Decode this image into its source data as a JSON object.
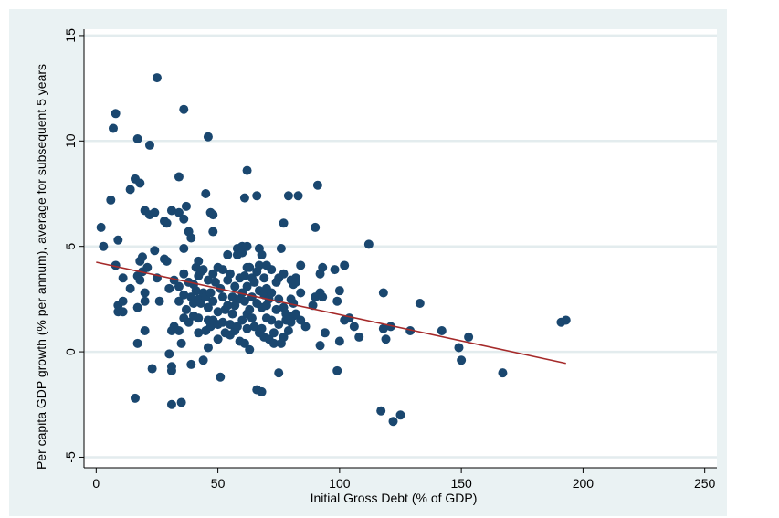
{
  "chart_data": {
    "type": "scatter",
    "title": "",
    "xlabel": "Initial Gross Debt (% of GDP)",
    "ylabel": "Per capita GDP growth (% per annum), average for subsequent 5 years",
    "xlim": [
      -5,
      255
    ],
    "ylim": [
      -5.5,
      15.3
    ],
    "x_ticks": [
      0,
      50,
      100,
      150,
      200,
      250
    ],
    "y_ticks": [
      -5,
      0,
      5,
      10,
      15
    ],
    "grid": "horizontal",
    "colors": {
      "points": "#1a476f",
      "fit_line": "#a52a2a",
      "grid": "#ffffff",
      "frame": "#eaf2f3",
      "plot_bg": "#ffffff"
    },
    "series": [
      {
        "type": "scatter",
        "points": [
          [
            2,
            5.9
          ],
          [
            3,
            5.0
          ],
          [
            6,
            7.2
          ],
          [
            7,
            10.6
          ],
          [
            8,
            11.3
          ],
          [
            8,
            4.1
          ],
          [
            9,
            5.3
          ],
          [
            9,
            2.2
          ],
          [
            9,
            1.9
          ],
          [
            11,
            1.9
          ],
          [
            11,
            2.4
          ],
          [
            11,
            3.5
          ],
          [
            14,
            7.7
          ],
          [
            14,
            3.0
          ],
          [
            16,
            8.2
          ],
          [
            16,
            -2.2
          ],
          [
            17,
            10.1
          ],
          [
            17,
            3.6
          ],
          [
            17,
            2.1
          ],
          [
            17,
            0.4
          ],
          [
            18,
            8.0
          ],
          [
            18,
            4.3
          ],
          [
            18,
            3.4
          ],
          [
            19,
            4.5
          ],
          [
            19,
            3.8
          ],
          [
            20,
            6.7
          ],
          [
            20,
            2.8
          ],
          [
            20,
            2.4
          ],
          [
            20,
            1.0
          ],
          [
            21,
            4.0
          ],
          [
            22,
            9.8
          ],
          [
            22,
            6.5
          ],
          [
            23,
            -0.8
          ],
          [
            24,
            6.6
          ],
          [
            24,
            4.8
          ],
          [
            25,
            13.0
          ],
          [
            25,
            3.5
          ],
          [
            26,
            2.4
          ],
          [
            28,
            6.2
          ],
          [
            28,
            4.4
          ],
          [
            29,
            6.1
          ],
          [
            29,
            4.3
          ],
          [
            30,
            3.0
          ],
          [
            30,
            -0.1
          ],
          [
            31,
            6.7
          ],
          [
            31,
            -2.5
          ],
          [
            31,
            1.0
          ],
          [
            31,
            -0.7
          ],
          [
            31,
            -0.9
          ],
          [
            32,
            3.4
          ],
          [
            32,
            1.2
          ],
          [
            34,
            8.3
          ],
          [
            34,
            6.6
          ],
          [
            34,
            3.1
          ],
          [
            34,
            2.4
          ],
          [
            34,
            1.0
          ],
          [
            35,
            0.4
          ],
          [
            35,
            -2.4
          ],
          [
            36,
            11.5
          ],
          [
            36,
            6.3
          ],
          [
            36,
            4.9
          ],
          [
            36,
            3.7
          ],
          [
            36,
            2.7
          ],
          [
            36,
            1.6
          ],
          [
            37,
            6.9
          ],
          [
            37,
            2.0
          ],
          [
            38,
            5.7
          ],
          [
            38,
            3.3
          ],
          [
            38,
            1.4
          ],
          [
            39,
            5.4
          ],
          [
            39,
            2.6
          ],
          [
            39,
            -0.6
          ],
          [
            40,
            3.2
          ],
          [
            40,
            2.3
          ],
          [
            40,
            1.7
          ],
          [
            41,
            4.0
          ],
          [
            41,
            2.9
          ],
          [
            42,
            4.3
          ],
          [
            42,
            3.6
          ],
          [
            42,
            2.5
          ],
          [
            42,
            1.6
          ],
          [
            42,
            0.9
          ],
          [
            43,
            3.8
          ],
          [
            43,
            2.3
          ],
          [
            44,
            -0.4
          ],
          [
            44,
            3.9
          ],
          [
            44,
            2.8
          ],
          [
            45,
            7.5
          ],
          [
            45,
            2.6
          ],
          [
            45,
            1.0
          ],
          [
            46,
            10.2
          ],
          [
            46,
            3.4
          ],
          [
            46,
            2.1
          ],
          [
            46,
            1.5
          ],
          [
            46,
            0.2
          ],
          [
            47,
            6.6
          ],
          [
            47,
            2.8
          ],
          [
            47,
            1.2
          ],
          [
            48,
            6.5
          ],
          [
            48,
            5.7
          ],
          [
            48,
            3.7
          ],
          [
            48,
            2.4
          ],
          [
            48,
            1.5
          ],
          [
            49,
            3.3
          ],
          [
            50,
            4.0
          ],
          [
            50,
            1.9
          ],
          [
            50,
            0.6
          ],
          [
            50,
            1.3
          ],
          [
            51,
            3.0
          ],
          [
            51,
            -1.2
          ],
          [
            52,
            3.9
          ],
          [
            52,
            2.6
          ],
          [
            52,
            1.4
          ],
          [
            53,
            2.0
          ],
          [
            53,
            0.9
          ],
          [
            54,
            4.6
          ],
          [
            54,
            3.4
          ],
          [
            54,
            2.2
          ],
          [
            55,
            3.7
          ],
          [
            55,
            1.3
          ],
          [
            55,
            0.8
          ],
          [
            56,
            2.6
          ],
          [
            56,
            1.8
          ],
          [
            57,
            3.1
          ],
          [
            57,
            2.2
          ],
          [
            57,
            1.0
          ],
          [
            58,
            4.9
          ],
          [
            58,
            4.6
          ],
          [
            58,
            1.2
          ],
          [
            59,
            3.5
          ],
          [
            59,
            2.5
          ],
          [
            59,
            0.5
          ],
          [
            60,
            5.0
          ],
          [
            60,
            4.7
          ],
          [
            60,
            2.8
          ],
          [
            60,
            1.5
          ],
          [
            61,
            7.3
          ],
          [
            61,
            3.6
          ],
          [
            61,
            2.4
          ],
          [
            61,
            0.4
          ],
          [
            62,
            8.6
          ],
          [
            62,
            5.0
          ],
          [
            62,
            4.0
          ],
          [
            62,
            3.1
          ],
          [
            62,
            1.8
          ],
          [
            62,
            1.1
          ],
          [
            63,
            4.0
          ],
          [
            63,
            2.0
          ],
          [
            63,
            0.1
          ],
          [
            64,
            3.5
          ],
          [
            64,
            2.6
          ],
          [
            64,
            1.6
          ],
          [
            65,
            3.3
          ],
          [
            65,
            1.2
          ],
          [
            66,
            7.4
          ],
          [
            66,
            3.8
          ],
          [
            66,
            2.3
          ],
          [
            66,
            -1.8
          ],
          [
            67,
            4.9
          ],
          [
            67,
            4.1
          ],
          [
            67,
            2.9
          ],
          [
            67,
            0.9
          ],
          [
            68,
            4.6
          ],
          [
            68,
            2.1
          ],
          [
            68,
            1.1
          ],
          [
            68,
            -1.9
          ],
          [
            69,
            3.5
          ],
          [
            69,
            2.7
          ],
          [
            69,
            0.7
          ],
          [
            70,
            4.1
          ],
          [
            70,
            3.0
          ],
          [
            70,
            2.2
          ],
          [
            70,
            1.6
          ],
          [
            71,
            2.5
          ],
          [
            71,
            0.6
          ],
          [
            72,
            3.9
          ],
          [
            72,
            2.8
          ],
          [
            72,
            1.5
          ],
          [
            73,
            0.4
          ],
          [
            73,
            0.9
          ],
          [
            74,
            3.3
          ],
          [
            74,
            2.0
          ],
          [
            75,
            3.5
          ],
          [
            75,
            2.5
          ],
          [
            75,
            1.3
          ],
          [
            75,
            -1.0
          ],
          [
            76,
            4.9
          ],
          [
            76,
            0.4
          ],
          [
            77,
            6.1
          ],
          [
            77,
            3.7
          ],
          [
            77,
            2.1
          ],
          [
            77,
            0.7
          ],
          [
            78,
            1.8
          ],
          [
            78,
            1.5
          ],
          [
            79,
            7.4
          ],
          [
            79,
            1.0
          ],
          [
            80,
            3.4
          ],
          [
            80,
            2.5
          ],
          [
            80,
            1.4
          ],
          [
            81,
            3.2
          ],
          [
            81,
            2.3
          ],
          [
            81,
            1.7
          ],
          [
            82,
            3.5
          ],
          [
            82,
            3.3
          ],
          [
            82,
            1.8
          ],
          [
            83,
            7.4
          ],
          [
            84,
            4.1
          ],
          [
            84,
            2.8
          ],
          [
            84,
            1.5
          ],
          [
            86,
            1.2
          ],
          [
            89,
            2.2
          ],
          [
            90,
            5.9
          ],
          [
            90,
            2.6
          ],
          [
            91,
            7.9
          ],
          [
            92,
            3.7
          ],
          [
            92,
            2.8
          ],
          [
            92,
            0.3
          ],
          [
            93,
            4.0
          ],
          [
            93,
            2.6
          ],
          [
            94,
            0.9
          ],
          [
            98,
            3.9
          ],
          [
            99,
            2.4
          ],
          [
            99,
            -0.9
          ],
          [
            100,
            2.9
          ],
          [
            100,
            0.5
          ],
          [
            102,
            4.1
          ],
          [
            102,
            1.5
          ],
          [
            104,
            1.6
          ],
          [
            106,
            1.2
          ],
          [
            108,
            0.7
          ],
          [
            112,
            5.1
          ],
          [
            117,
            -2.8
          ],
          [
            118,
            2.8
          ],
          [
            118,
            1.1
          ],
          [
            119,
            0.6
          ],
          [
            121,
            1.2
          ],
          [
            122,
            -3.3
          ],
          [
            125,
            -3.0
          ],
          [
            129,
            1.0
          ],
          [
            133,
            2.3
          ],
          [
            142,
            1.0
          ],
          [
            149,
            0.2
          ],
          [
            150,
            -0.4
          ],
          [
            153,
            0.7
          ],
          [
            167,
            -1.0
          ],
          [
            191,
            1.4
          ],
          [
            193,
            1.5
          ]
        ]
      },
      {
        "type": "line",
        "points": [
          [
            0,
            4.25
          ],
          [
            193,
            -0.55
          ]
        ]
      }
    ]
  }
}
